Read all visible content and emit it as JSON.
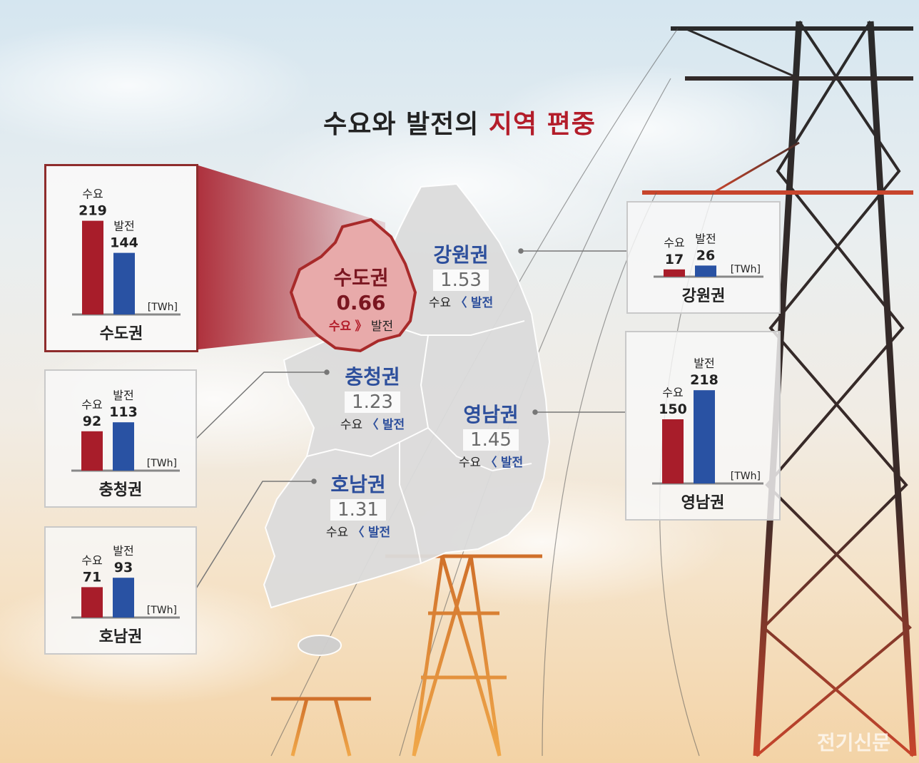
{
  "title": {
    "part1": "수요와 발전의",
    "part2": "지역 편중"
  },
  "legend": {
    "demand": "수요",
    "generation": "발전",
    "unit": "[TWh]"
  },
  "colors": {
    "demand": "#a81d2a",
    "generation": "#2952a3",
    "accent": "#b31d2a",
    "region_text": "#2d4f9c"
  },
  "chart_data": {
    "type": "bar",
    "unit": "[TWh]",
    "title": "수요와 발전의 지역 편중",
    "categories": [
      "수도권",
      "강원권",
      "충청권",
      "영남권",
      "호남권"
    ],
    "series": [
      {
        "name": "수요",
        "values": [
          219,
          17,
          92,
          150,
          71
        ]
      },
      {
        "name": "발전",
        "values": [
          144,
          26,
          113,
          218,
          93
        ]
      }
    ],
    "ratios": [
      "0.66",
      "1.53",
      "1.23",
      "1.45",
      "1.31"
    ]
  },
  "regions": [
    {
      "id": "sudo",
      "name": "수도권",
      "ratio": "0.66",
      "left": "수요",
      "sym": "》",
      "right": "발전"
    },
    {
      "id": "gangwon",
      "name": "강원권",
      "ratio": "1.53",
      "left": "수요",
      "sym": "〈",
      "right": "발전"
    },
    {
      "id": "chungcheong",
      "name": "충청권",
      "ratio": "1.23",
      "left": "수요",
      "sym": "〈",
      "right": "발전"
    },
    {
      "id": "yeongnam",
      "name": "영남권",
      "ratio": "1.45",
      "left": "수요",
      "sym": "〈",
      "right": "발전"
    },
    {
      "id": "honam",
      "name": "호남권",
      "ratio": "1.31",
      "left": "수요",
      "sym": "〈",
      "right": "발전"
    }
  ],
  "watermark": "전기신문"
}
